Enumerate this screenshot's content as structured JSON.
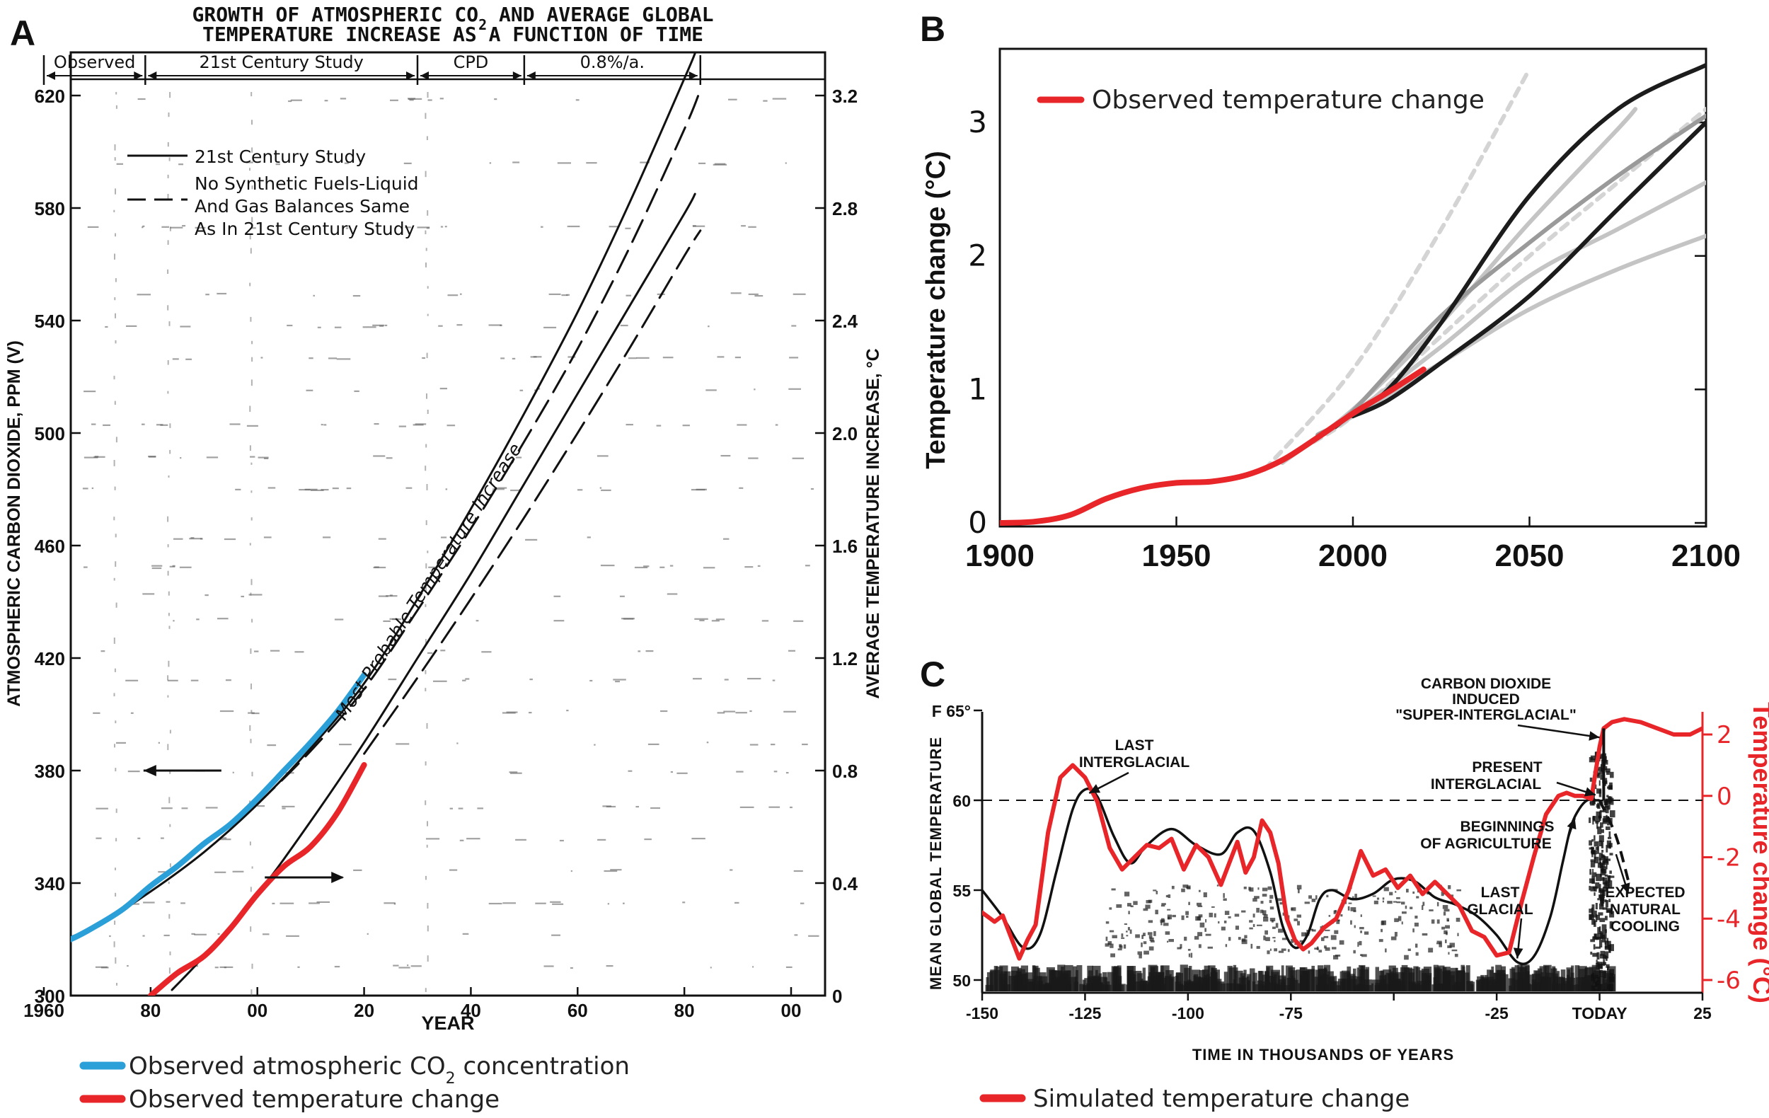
{
  "panels": {
    "a": {
      "letter": "A"
    },
    "b": {
      "letter": "B"
    },
    "c": {
      "letter": "C"
    }
  },
  "colors": {
    "observed_co2": "#2a9fd8",
    "observed_temp": "#e8262a",
    "model_dark": "#1c1c1c",
    "model_light": "#c4c4c4",
    "model_mid": "#9a9a9a",
    "paper_ink": "#111111"
  },
  "chart_data": [
    {
      "panel": "A",
      "type": "line",
      "title": "GROWTH OF ATMOSPHERIC CO2 AND AVERAGE GLOBAL TEMPERATURE INCREASE AS A FUNCTION OF TIME",
      "title_line1": "GROWTH OF ATMOSPHERIC CO",
      "title_line1_sub": "2",
      "title_line1_end": " AND AVERAGE GLOBAL",
      "title_line2": "TEMPERATURE INCREASE AS A FUNCTION OF TIME",
      "xlabel": "YEAR",
      "ylabel_left": "ATMOSPHERIC CARBON DIOXIDE, PPM (V)",
      "ylabel_right": "AVERAGE TEMPERATURE INCREASE, °C",
      "xlim": [
        1960,
        2100
      ],
      "ylim_left": [
        300,
        650
      ],
      "ylim_right": [
        0,
        3.6
      ],
      "x_ticks": [
        1960,
        1980,
        2000,
        2020,
        2040,
        2060,
        2080,
        2100
      ],
      "x_tick_labels": [
        "1960",
        "80",
        "00",
        "20",
        "40",
        "60",
        "80",
        "00"
      ],
      "y_ticks_left": [
        300,
        340,
        380,
        420,
        460,
        500,
        540,
        580,
        620
      ],
      "y_ticks_right": [
        0,
        0.4,
        0.8,
        1.2,
        1.6,
        2.0,
        2.4,
        2.8,
        3.2
      ],
      "y_tick_labels_right": [
        "0",
        "0.4",
        "0.8",
        "1.2",
        "1.6",
        "2.0",
        "2.4",
        "2.8",
        "3.2"
      ],
      "periods": [
        "Observed",
        "21st Century Study",
        "CPD",
        "0.8%/a."
      ],
      "period_bounds": [
        1960,
        1979,
        2030,
        2050,
        2083
      ],
      "legend_entries": [
        "21st Century Study",
        "No Synthetic Fuels-Liquid",
        "And Gas Balances Same",
        "As In 21st Century Study"
      ],
      "annotation": "Most Probable Temperature Increase",
      "series": [
        {
          "name": "21st Century Study",
          "axis": "left",
          "style": "solid",
          "x": [
            1960,
            1970,
            1980,
            1990,
            2000,
            2010,
            2020,
            2030,
            2040,
            2050,
            2060,
            2070,
            2080,
            2082
          ],
          "values": [
            317,
            325,
            337,
            351,
            368,
            388,
            411,
            441,
            473,
            507,
            543,
            583,
            626,
            635
          ]
        },
        {
          "name": "No Synthetic Fuels-Liquid And Gas Balances Same As In 21st Century Study",
          "axis": "left",
          "style": "dashed",
          "x": [
            2000,
            2010,
            2020,
            2030,
            2040,
            2050,
            2060,
            2070,
            2080,
            2083
          ],
          "values": [
            368,
            387,
            409,
            437,
            466,
            497,
            530,
            567,
            608,
            622
          ]
        },
        {
          "name": "21st Century Study",
          "axis": "right",
          "style": "solid",
          "x": [
            1984,
            1990,
            2000,
            2010,
            2020,
            2030,
            2040,
            2050,
            2060,
            2070,
            2080,
            2082
          ],
          "values": [
            0.02,
            0.14,
            0.36,
            0.62,
            0.9,
            1.2,
            1.5,
            1.82,
            2.14,
            2.46,
            2.78,
            2.85
          ]
        },
        {
          "name": "No Synthetic Fuels-Liquid And Gas Balances Same As In 21st Century Study",
          "axis": "right",
          "style": "dashed",
          "x": [
            2020,
            2030,
            2040,
            2050,
            2060,
            2070,
            2080,
            2083
          ],
          "values": [
            0.86,
            1.13,
            1.41,
            1.7,
            2.0,
            2.31,
            2.63,
            2.72
          ]
        },
        {
          "name": "Observed atmospheric CO2 concentration",
          "axis": "left",
          "style": "observed_co2",
          "x": [
            1960,
            1965,
            1970,
            1975,
            1980,
            1985,
            1990,
            1995,
            2000,
            2005,
            2010,
            2015,
            2020
          ],
          "values": [
            317,
            320,
            325,
            331,
            339,
            346,
            354,
            361,
            370,
            380,
            390,
            401,
            414
          ]
        },
        {
          "name": "Observed temperature change",
          "axis": "right",
          "style": "observed_temp",
          "x": [
            1980,
            1985,
            1990,
            1995,
            2000,
            2005,
            2010,
            2015,
            2020
          ],
          "values": [
            0.0,
            0.08,
            0.14,
            0.24,
            0.36,
            0.46,
            0.53,
            0.65,
            0.82
          ]
        }
      ],
      "arrow_left_at": {
        "x": 1980,
        "value": 380
      },
      "arrow_right_at": {
        "x": 2012,
        "value": 0.42
      },
      "legend_below": [
        {
          "label_main": "Observed atmospheric CO",
          "label_sub": "2",
          "label_end": " concentration",
          "color_key": "observed_co2"
        },
        {
          "label_main": "Observed temperature change",
          "label_sub": "",
          "label_end": "",
          "color_key": "observed_temp"
        }
      ]
    },
    {
      "panel": "B",
      "type": "line",
      "ylabel": "Temperature change (°C)",
      "xlim": [
        1900,
        2100
      ],
      "ylim": [
        -0.2,
        3.5
      ],
      "x_ticks": [
        1900,
        1950,
        2000,
        2050,
        2100
      ],
      "y_ticks": [
        0,
        1,
        2,
        3
      ],
      "legend": [
        {
          "label": "Observed temperature change",
          "color_key": "observed_temp"
        }
      ],
      "legend_position": "top-left",
      "series": [
        {
          "name": "Observed temperature change",
          "style": "observed",
          "x": [
            1900,
            1910,
            1920,
            1930,
            1940,
            1950,
            1960,
            1970,
            1980,
            1990,
            2000,
            2010,
            2020
          ],
          "values": [
            0.0,
            0.01,
            0.06,
            0.18,
            0.26,
            0.3,
            0.31,
            0.36,
            0.47,
            0.64,
            0.82,
            0.98,
            1.15
          ]
        },
        {
          "style": "dotted_light",
          "x": [
            1975,
            2000,
            2025,
            2050
          ],
          "values": [
            0.4,
            1.15,
            2.2,
            3.4
          ]
        },
        {
          "style": "dotted_light",
          "x": [
            1985,
            2000,
            2025,
            2050,
            2075,
            2100
          ],
          "values": [
            0.55,
            0.8,
            1.4,
            2.0,
            2.55,
            3.1
          ]
        },
        {
          "style": "light",
          "x": [
            1980,
            2000,
            2025,
            2050,
            2075,
            2080
          ],
          "values": [
            0.45,
            0.85,
            1.5,
            2.25,
            2.95,
            3.1
          ]
        },
        {
          "style": "light",
          "x": [
            1985,
            2000,
            2025,
            2050,
            2075,
            2100
          ],
          "values": [
            0.55,
            0.8,
            1.2,
            1.6,
            1.9,
            2.15
          ]
        },
        {
          "style": "light",
          "x": [
            1985,
            2000,
            2025,
            2050,
            2075,
            2100
          ],
          "values": [
            0.55,
            0.82,
            1.32,
            1.85,
            2.2,
            2.55
          ]
        },
        {
          "style": "mid",
          "x": [
            1990,
            2000,
            2025,
            2050,
            2075,
            2100
          ],
          "values": [
            0.66,
            0.84,
            1.55,
            2.1,
            2.6,
            3.05
          ]
        },
        {
          "style": "dark",
          "x": [
            1995,
            2000,
            2010,
            2025,
            2050,
            2075,
            2100
          ],
          "values": [
            0.72,
            0.82,
            1.0,
            1.5,
            2.45,
            3.1,
            3.43
          ]
        },
        {
          "style": "dark",
          "x": [
            2000,
            2010,
            2025,
            2050,
            2075,
            2100
          ],
          "values": [
            0.8,
            0.92,
            1.2,
            1.7,
            2.35,
            3.0
          ]
        }
      ]
    },
    {
      "panel": "C",
      "type": "line",
      "xlabel": "TIME IN THOUSANDS OF YEARS",
      "ylabel_left": "MEAN GLOBAL TEMPERATURE",
      "ylabel_right": "Temperature change (°C)",
      "xlim": [
        -150,
        25
      ],
      "ylim_left": [
        49,
        65.5
      ],
      "ylim_right": [
        -6.6,
        2.6
      ],
      "x_ticks": [
        -150,
        -125,
        -100,
        -75,
        -50,
        -25,
        0,
        25
      ],
      "x_tick_labels": [
        "-150",
        "-125",
        "-100",
        "-75",
        "",
        "-25",
        "TODAY",
        "25"
      ],
      "y_ticks_left": [
        50,
        55,
        60,
        65
      ],
      "y_tick_labels_left": [
        "50",
        "55",
        "60",
        "F 65°"
      ],
      "y_ticks_right": [
        -6,
        -4,
        -2,
        0,
        2
      ],
      "dashed_reference_left": 60,
      "annotations": [
        "LAST",
        "INTERGLACIAL",
        "CARBON DIOXIDE",
        "INDUCED",
        "\"SUPER-INTERGLACIAL\"",
        "PRESENT",
        "INTERGLACIAL",
        "BEGINNINGS",
        "OF AGRICULTURE",
        "LAST",
        "GLACIAL",
        "EXPECTED",
        "NATURAL",
        "COOLING"
      ],
      "series": [
        {
          "name": "Mean global temperature (historical reconstruction)",
          "axis": "left",
          "style": "black",
          "x": [
            -150,
            -145,
            -140,
            -136,
            -132,
            -128,
            -125,
            -122,
            -118,
            -114,
            -110,
            -104,
            -98,
            -92,
            -88,
            -84,
            -80,
            -77,
            -74,
            -71,
            -68,
            -65,
            -60,
            -55,
            -50,
            -45,
            -40,
            -35,
            -30,
            -25,
            -20,
            -16,
            -12,
            -9,
            -7,
            -5,
            -3,
            -1,
            0
          ],
          "values": [
            55,
            53.5,
            51.8,
            52.5,
            56,
            59.5,
            60.6,
            60.2,
            58,
            56.5,
            57.5,
            58.4,
            57.5,
            57,
            58.2,
            58.3,
            56,
            53,
            51.8,
            52.5,
            54.5,
            55,
            54.5,
            54.8,
            55.6,
            55.5,
            54.6,
            54.2,
            53.6,
            52.5,
            51,
            51.3,
            53.5,
            56.5,
            58.5,
            59.5,
            60,
            60,
            60
          ]
        },
        {
          "name": "Simulated temperature change",
          "axis": "right",
          "style": "red",
          "x": [
            -150,
            -147,
            -145,
            -143,
            -141,
            -139,
            -137,
            -134,
            -131,
            -128,
            -125,
            -122,
            -119,
            -116,
            -113,
            -110,
            -107,
            -104,
            -101,
            -98,
            -95,
            -92,
            -90,
            -88,
            -86,
            -84,
            -82,
            -80,
            -78,
            -76,
            -74,
            -72,
            -70,
            -67,
            -64,
            -61,
            -58,
            -55,
            -52,
            -49,
            -46,
            -43,
            -40,
            -37,
            -34,
            -31,
            -28,
            -25,
            -22,
            -19,
            -16,
            -13,
            -10,
            -8,
            -6,
            -4,
            -2,
            0,
            1,
            3,
            6,
            10,
            14,
            18,
            22,
            25
          ],
          "values": [
            -3.8,
            -4.1,
            -3.9,
            -4.6,
            -5.3,
            -4.7,
            -4.2,
            -1.2,
            0.6,
            1.0,
            0.6,
            -0.2,
            -1.7,
            -2.4,
            -2.0,
            -1.6,
            -1.7,
            -1.4,
            -2.4,
            -1.6,
            -2.0,
            -2.9,
            -2.2,
            -1.5,
            -2.5,
            -2.0,
            -0.8,
            -1.2,
            -2.2,
            -4.0,
            -4.7,
            -5.0,
            -4.8,
            -4.3,
            -4.0,
            -3.1,
            -1.8,
            -2.6,
            -2.4,
            -3.0,
            -2.6,
            -3.2,
            -2.8,
            -3.2,
            -3.6,
            -4.4,
            -4.6,
            -5.2,
            -5.1,
            -3.5,
            -2.0,
            -0.6,
            0.0,
            0.1,
            0.0,
            0.0,
            -0.1,
            1.6,
            2.2,
            2.4,
            2.5,
            2.4,
            2.2,
            2.0,
            2.0,
            2.2
          ]
        }
      ],
      "legend_below": [
        {
          "label": "Simulated temperature change",
          "color_key": "observed_temp"
        }
      ]
    }
  ]
}
